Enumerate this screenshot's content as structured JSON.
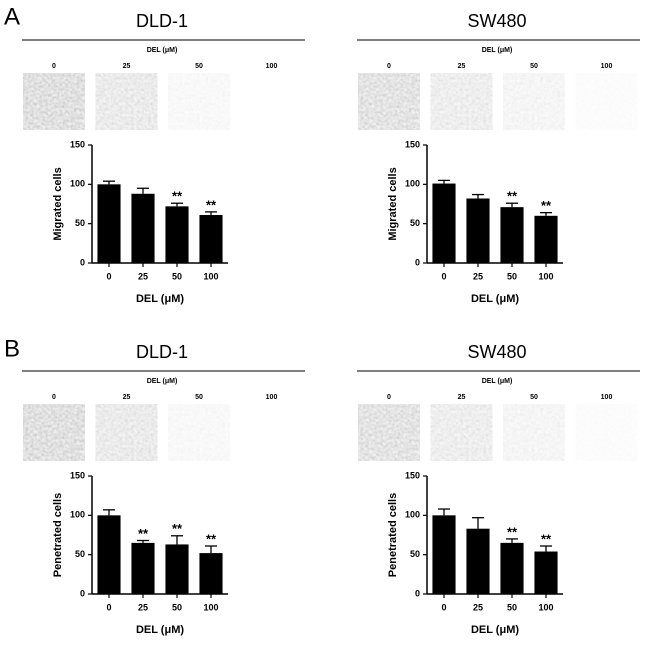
{
  "panel_labels": [
    "A",
    "B"
  ],
  "chart_data": [
    {
      "type": "bar",
      "title": "DLD-1",
      "categories": [
        "0",
        "25",
        "50",
        "100"
      ],
      "values": [
        100,
        88,
        72,
        61
      ],
      "errors": [
        4,
        7,
        4,
        4
      ],
      "value_annotations": [
        null,
        null,
        "**",
        "**"
      ],
      "color": "#000000",
      "xlabel": "DEL (μM)",
      "ylabel": "Migrated cells",
      "ylim": [
        0,
        150
      ],
      "yticks": [
        0,
        50,
        100,
        150
      ]
    },
    {
      "type": "bar",
      "title": "SW480",
      "categories": [
        "0",
        "25",
        "50",
        "100"
      ],
      "values": [
        101,
        82,
        71,
        60
      ],
      "errors": [
        4,
        5,
        5,
        4
      ],
      "value_annotations": [
        null,
        null,
        "**",
        "**"
      ],
      "color": "#000000",
      "xlabel": "DEL (μM)",
      "ylabel": "Migrated cells",
      "ylim": [
        0,
        150
      ],
      "yticks": [
        0,
        50,
        100,
        150
      ]
    },
    {
      "type": "bar",
      "title": "DLD-1",
      "categories": [
        "0",
        "25",
        "50",
        "100"
      ],
      "values": [
        100,
        65,
        63,
        52
      ],
      "errors": [
        7,
        3,
        11,
        9
      ],
      "value_annotations": [
        null,
        "**",
        "**",
        "**"
      ],
      "color": "#000000",
      "xlabel": "DEL (μM)",
      "ylabel": "Penetrated cells",
      "ylim": [
        0,
        150
      ],
      "yticks": [
        0,
        50,
        100,
        150
      ]
    },
    {
      "type": "bar",
      "title": "SW480",
      "categories": [
        "0",
        "25",
        "50",
        "100"
      ],
      "values": [
        100,
        83,
        65,
        54
      ],
      "errors": [
        8,
        14,
        5,
        7
      ],
      "value_annotations": [
        null,
        null,
        "**",
        "**"
      ],
      "color": "#000000",
      "xlabel": "DEL (μM)",
      "ylabel": "Penetrated cells",
      "ylim": [
        0,
        150
      ],
      "yticks": [
        0,
        50,
        100,
        150
      ]
    }
  ]
}
